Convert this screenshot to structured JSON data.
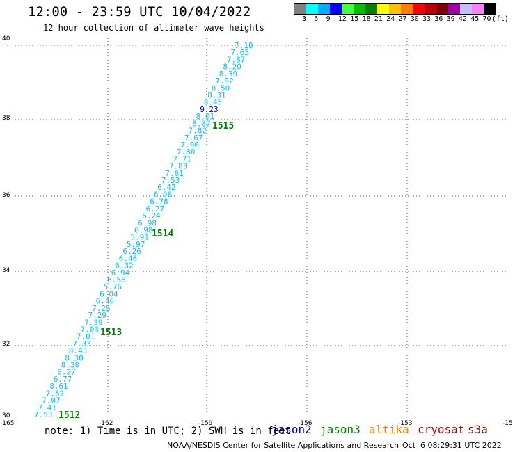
{
  "title": "12:00 - 23:59 UTC 10/04/2022",
  "subtitle": "12 hour collection of altimeter wave heights",
  "legend": {
    "colors": [
      "#808080",
      "#00ffff",
      "#00b0ff",
      "#0000ff",
      "#40ff40",
      "#00c000",
      "#008000",
      "#ffff00",
      "#ffc000",
      "#ff8000",
      "#ff0000",
      "#c00000",
      "#800000",
      "#a000a0",
      "#c0c0ff",
      "#ff80ff",
      "#000000"
    ],
    "labels": [
      "3",
      "6",
      "9",
      "12",
      "15",
      "18",
      "21",
      "24",
      "27",
      "30",
      "33",
      "36",
      "39",
      "42",
      "45",
      "70",
      "(ft)"
    ]
  },
  "axes": {
    "lat_labels": [
      "40",
      "38",
      "36",
      "34",
      "32",
      "30"
    ],
    "lon_labels": [
      "-165",
      "-162",
      "-159",
      "-156",
      "-153",
      "-15"
    ]
  },
  "track": {
    "color": "#00bfff",
    "values": [
      "7.18",
      "7.65",
      "7.87",
      "8.20",
      "8.39",
      "7.92",
      "8.50",
      "8.31",
      "8.45",
      "9.23",
      "8.01",
      "8.87",
      "7.82",
      "7.67",
      "7.90",
      "7.80",
      "7.71",
      "7.83",
      "7.61",
      "7.53",
      "6.42",
      "6.98",
      "6.78",
      "6.27",
      "6.24",
      "6.98",
      "6.98",
      "5.91",
      "5.97",
      "6.26",
      "6.46",
      "6.32",
      "6.94",
      "6.56",
      "5.76",
      "6.04",
      "6.46",
      "7.25",
      "7.29",
      "7.39",
      "7.03",
      "7.01",
      "7.33",
      "8.43",
      "8.30",
      "8.30",
      "8.27",
      "6.77",
      "8.61",
      "7.52",
      "7.07",
      "7.41",
      "7.53"
    ],
    "value_colors": {
      "9.23": "#0000c0"
    },
    "time_labels": [
      "1515",
      "1514",
      "1513",
      "1512"
    ],
    "time_color": "#008000"
  },
  "footer": {
    "note": "note: 1) Time is in UTC; 2) SWH is in feet",
    "satellites": [
      {
        "name": "jason2",
        "color": "#0000c0"
      },
      {
        "name": "jason3",
        "color": "#008000"
      },
      {
        "name": "altika",
        "color": "#ff8000"
      },
      {
        "name": "cryosat",
        "color": "#c00000"
      },
      {
        "name": "s3a",
        "color": "#800000"
      }
    ],
    "credit": "NOAA/NESDIS Center for Satellite Applications and Research",
    "generated": "Oct  6 08:29:31 UTC 2022"
  }
}
